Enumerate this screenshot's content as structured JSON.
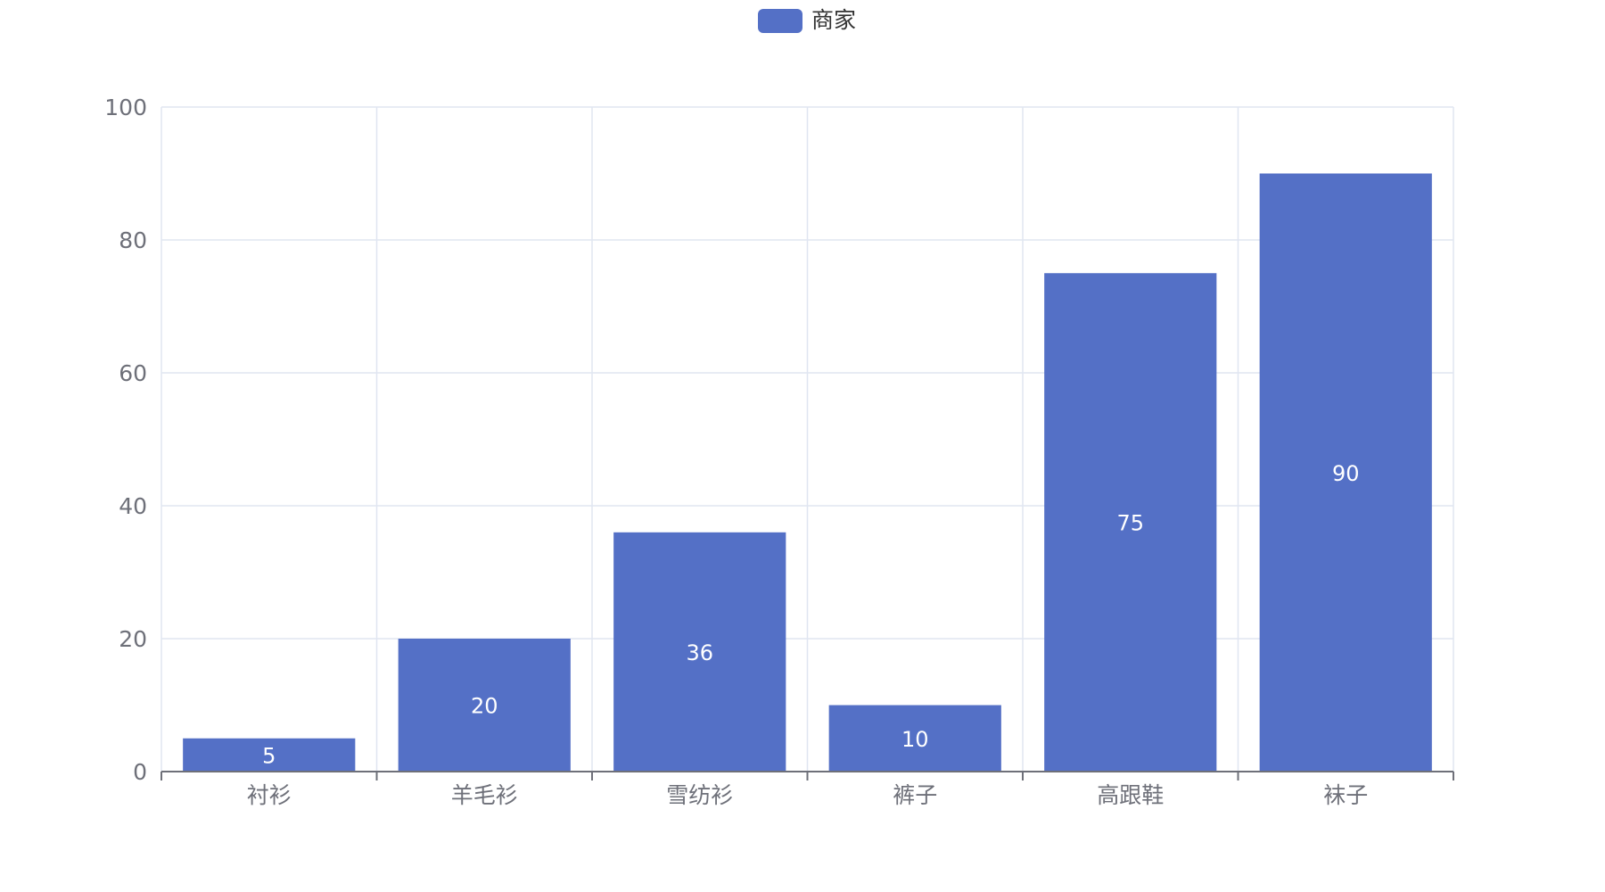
{
  "chart_data": {
    "type": "bar",
    "categories": [
      "衬衫",
      "羊毛衫",
      "雪纺衫",
      "裤子",
      "高跟鞋",
      "袜子"
    ],
    "series": [
      {
        "name": "商家",
        "values": [
          5,
          20,
          36,
          10,
          75,
          90
        ]
      }
    ],
    "yticks": [
      "0",
      "20",
      "40",
      "60",
      "80",
      "100"
    ],
    "ylim": [
      0,
      100
    ],
    "grid": true,
    "legend": "top-center",
    "show_value_labels": true,
    "colors": {
      "bar": "#5470c6",
      "grid": "#e0e6f1",
      "axis": "#6e7079",
      "label_inside": "#ffffff"
    }
  }
}
